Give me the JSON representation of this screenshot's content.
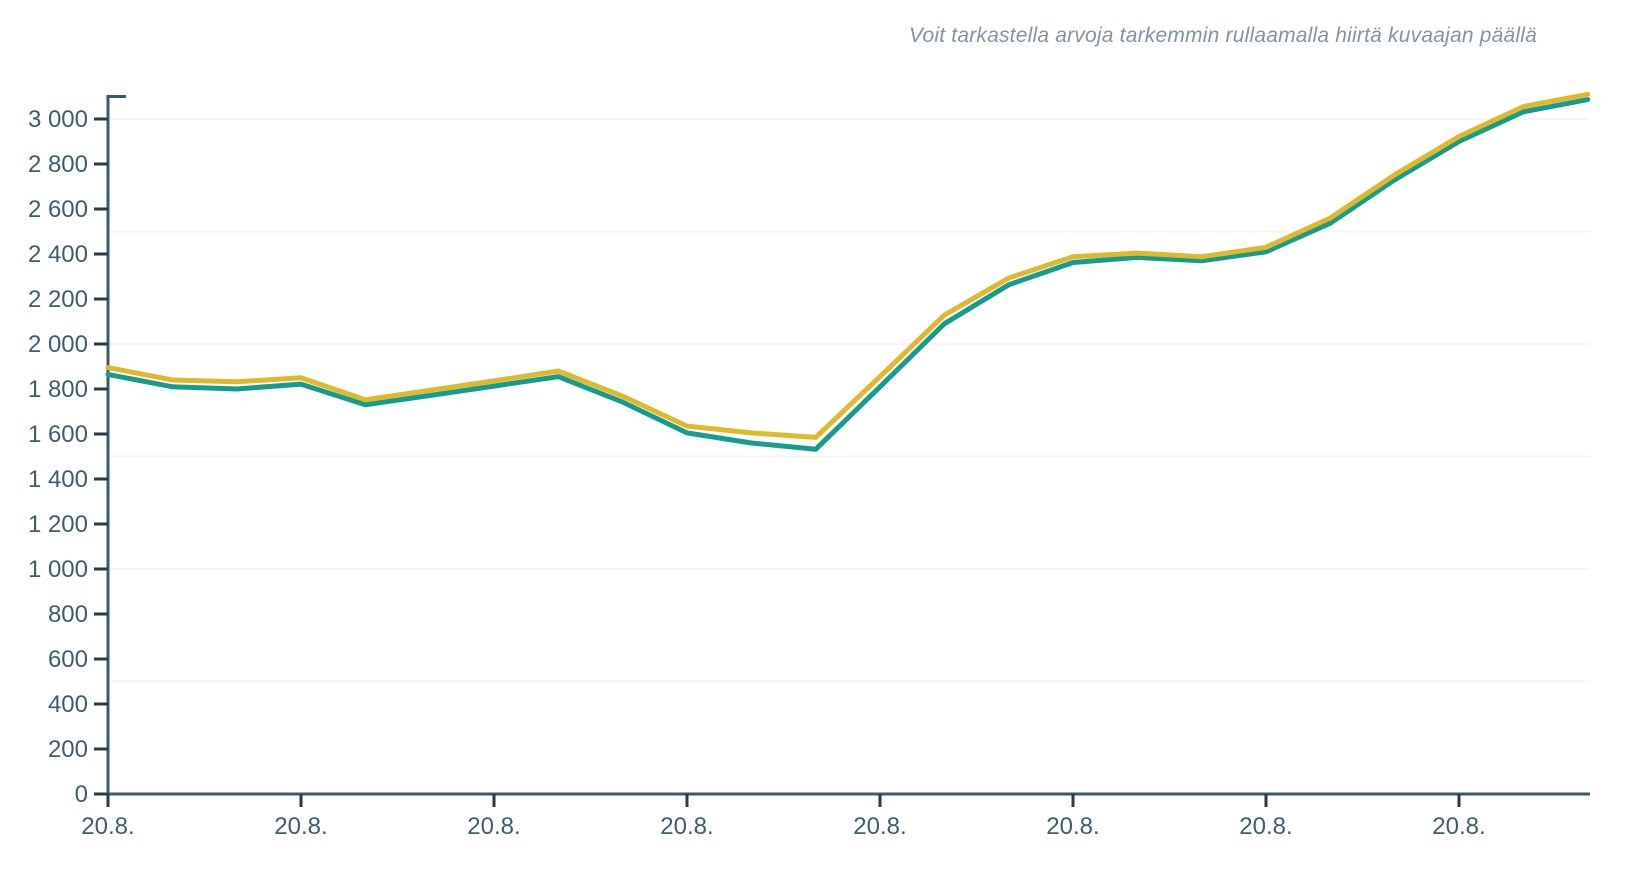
{
  "caption": "Voit tarkastella arvoja tarkemmin rullaamalla hiirtä kuvaajan päällä",
  "colors": {
    "background": "#ffffff",
    "axis_line": "#3a5a69",
    "tick_mark": "#2a3b44",
    "tick_label": "#3f5e6d",
    "gridline": "#f4f5f5",
    "caption_text": "#8494a4",
    "series_teal": "#169c8e",
    "series_yellow": "#ddb92b"
  },
  "chart_data": {
    "type": "line",
    "title": "",
    "xlabel": "",
    "ylabel": "",
    "legend": "none",
    "grid": "horizontal-every-500",
    "ylim": [
      0,
      3100
    ],
    "y_ticks": [
      0,
      200,
      400,
      600,
      800,
      1000,
      1200,
      1400,
      1600,
      1800,
      2000,
      2200,
      2400,
      2600,
      2800,
      3000
    ],
    "y_tick_labels": [
      "0",
      "200",
      "400",
      "600",
      "800",
      "1 000",
      "1 200",
      "1 400",
      "1 600",
      "1 800",
      "2 000",
      "2 200",
      "2 400",
      "2 600",
      "2 800",
      "3 000"
    ],
    "gridlines_y": [
      500,
      1000,
      1500,
      2000,
      2500,
      3000
    ],
    "x_tick_labels": [
      "20.8.",
      "20.8.",
      "20.8.",
      "20.8.",
      "20.8.",
      "20.8.",
      "20.8.",
      "20.8."
    ],
    "points_per_tick_interval": 3,
    "series": [
      {
        "name": "series-teal",
        "color": "#169c8e",
        "values": [
          1865,
          1810,
          1800,
          1822,
          1730,
          1771,
          1813,
          1855,
          1742,
          1605,
          1560,
          1532,
          1810,
          2090,
          2263,
          2362,
          2385,
          2370,
          2410,
          2537,
          2730,
          2900,
          3032,
          3086
        ]
      },
      {
        "name": "series-yellow",
        "color": "#ddb92b",
        "values": [
          1895,
          1840,
          1832,
          1850,
          1752,
          1794,
          1836,
          1880,
          1768,
          1635,
          1605,
          1585,
          1855,
          2128,
          2293,
          2388,
          2404,
          2388,
          2430,
          2560,
          2752,
          2922,
          3055,
          3110
        ]
      }
    ]
  }
}
